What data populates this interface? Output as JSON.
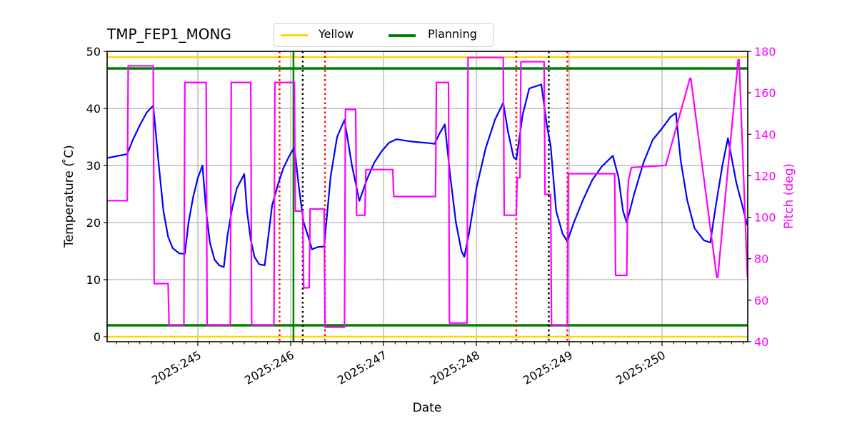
{
  "chart_data": {
    "type": "line",
    "title": "TMP_FEP1_MONG",
    "xlabel": "Date",
    "ylabel": "Temperature ($^\\circ$C)",
    "ylabel_display": "Temperature ( ̊C)",
    "y2label": "Pitch (deg)",
    "xlim": [
      244.02,
      250.92
    ],
    "ylim": [
      -1,
      50
    ],
    "y2lim": [
      40,
      180
    ],
    "grid": true,
    "legend_position": "top-center (above axes)",
    "x_ticks": [
      {
        "value": 245,
        "label": "2025:245"
      },
      {
        "value": 246,
        "label": "2025:246"
      },
      {
        "value": 247,
        "label": "2025:247"
      },
      {
        "value": 248,
        "label": "2025:248"
      },
      {
        "value": 249,
        "label": "2025:249"
      },
      {
        "value": 250,
        "label": "2025:250"
      }
    ],
    "y_ticks": [
      0,
      10,
      20,
      30,
      40,
      50
    ],
    "y2_ticks": [
      40,
      60,
      80,
      100,
      120,
      140,
      160,
      180
    ],
    "legend": [
      {
        "label": "Yellow",
        "color": "#ffd700"
      },
      {
        "label": "Planning",
        "color": "#008000"
      }
    ],
    "limits": [
      {
        "name": "Yellow high",
        "value": 49,
        "color": "#ffd700"
      },
      {
        "name": "Yellow low",
        "value": 0,
        "color": "#ffd700"
      },
      {
        "name": "Planning high",
        "value": 47,
        "color": "#008000"
      },
      {
        "name": "Planning low",
        "value": 2,
        "color": "#008000"
      }
    ],
    "vertical_lines": [
      {
        "x": 245.88,
        "color": "#ff0000",
        "style": "dotted"
      },
      {
        "x": 246.03,
        "color": "#008000",
        "style": "solid"
      },
      {
        "x": 246.13,
        "color": "#000000",
        "style": "dotted"
      },
      {
        "x": 246.37,
        "color": "#ff0000",
        "style": "dotted"
      },
      {
        "x": 248.43,
        "color": "#ff0000",
        "style": "dotted"
      },
      {
        "x": 248.78,
        "color": "#000000",
        "style": "dotted"
      },
      {
        "x": 248.98,
        "color": "#ff0000",
        "style": "dotted"
      }
    ],
    "series": [
      {
        "name": "TMP_FEP1_MONG",
        "axis": "left",
        "color": "#0000ff",
        "x": [
          244.02,
          244.24,
          244.3,
          244.38,
          244.45,
          244.52,
          244.58,
          244.63,
          244.68,
          244.73,
          244.8,
          244.86,
          244.9,
          244.95,
          245.0,
          245.05,
          245.09,
          245.13,
          245.18,
          245.23,
          245.28,
          245.32,
          245.37,
          245.42,
          245.5,
          245.53,
          245.57,
          245.61,
          245.66,
          245.72,
          245.77,
          245.8,
          245.86,
          245.92,
          245.98,
          246.04,
          246.09,
          246.14,
          246.2,
          246.23,
          246.29,
          246.36,
          246.43,
          246.5,
          246.58,
          246.66,
          246.74,
          246.82,
          246.9,
          246.98,
          247.06,
          247.14,
          247.3,
          247.5,
          247.55,
          247.6,
          247.66,
          247.72,
          247.78,
          247.84,
          247.87,
          247.92,
          248.0,
          248.1,
          248.2,
          248.29,
          248.34,
          248.4,
          248.43,
          248.5,
          248.57,
          248.7,
          248.76,
          248.8,
          248.86,
          248.93,
          248.98,
          249.05,
          249.15,
          249.25,
          249.35,
          249.47,
          249.53,
          249.58,
          249.62,
          249.7,
          249.8,
          249.9,
          250.0,
          250.09,
          250.15,
          250.2,
          250.27,
          250.35,
          250.45,
          250.52,
          250.57,
          250.65,
          250.71,
          250.8,
          250.92
        ],
        "values": [
          31.3,
          32.0,
          34.5,
          37.2,
          39.3,
          40.5,
          30.0,
          22.0,
          17.5,
          15.5,
          14.6,
          14.5,
          20.0,
          24.5,
          27.8,
          30.0,
          22.0,
          16.5,
          13.5,
          12.5,
          12.2,
          17.8,
          22.5,
          26.0,
          28.5,
          22.0,
          17.0,
          14.0,
          12.7,
          12.5,
          19.0,
          23.0,
          26.5,
          29.5,
          31.5,
          33.2,
          26.0,
          20.0,
          17.0,
          15.3,
          15.7,
          15.8,
          28.0,
          35.0,
          38.0,
          30.0,
          23.8,
          27.5,
          30.5,
          32.5,
          34.0,
          34.6,
          34.2,
          33.9,
          33.8,
          35.5,
          37.2,
          28.0,
          20.0,
          15.0,
          14.0,
          18.0,
          26.0,
          33.0,
          38.0,
          41.0,
          36.0,
          31.5,
          31.0,
          39.0,
          43.5,
          44.2,
          37.0,
          33.5,
          22.0,
          18.0,
          16.7,
          20.0,
          24.0,
          27.5,
          29.8,
          31.7,
          28.0,
          22.0,
          20.0,
          25.0,
          30.5,
          34.5,
          36.5,
          38.5,
          39.2,
          31.0,
          24.0,
          19.0,
          16.9,
          16.5,
          22.0,
          30.0,
          34.8,
          27.0,
          19.5
        ]
      },
      {
        "name": "Pitch",
        "axis": "right",
        "color": "#ff00ff",
        "x": [
          244.02,
          244.24,
          244.25,
          244.52,
          244.53,
          244.68,
          244.69,
          244.85,
          244.86,
          245.09,
          245.1,
          245.35,
          245.36,
          245.57,
          245.58,
          245.82,
          245.83,
          246.04,
          246.05,
          246.13,
          246.14,
          246.2,
          246.21,
          246.36,
          246.37,
          246.58,
          246.59,
          246.7,
          246.71,
          246.8,
          246.81,
          247.1,
          247.11,
          247.56,
          247.57,
          247.7,
          247.71,
          247.9,
          247.91,
          248.29,
          248.3,
          248.43,
          248.44,
          248.47,
          248.48,
          248.73,
          248.74,
          248.8,
          248.81,
          248.98,
          248.99,
          249.49,
          249.5,
          249.62,
          249.63,
          249.64,
          249.67,
          249.68,
          250.03,
          250.04,
          250.3,
          250.31,
          250.59,
          250.6,
          250.82,
          250.83,
          250.92
        ],
        "values": [
          108,
          108,
          173,
          173,
          68,
          68,
          48,
          48,
          165,
          165,
          48,
          48,
          165,
          165,
          48,
          48,
          165,
          165,
          103,
          103,
          66,
          66,
          104,
          104,
          47,
          47,
          152,
          152,
          101,
          101,
          123,
          123,
          110,
          110,
          165,
          165,
          49,
          49,
          177,
          177,
          101,
          101,
          119,
          119,
          175,
          175,
          111,
          111,
          48,
          48,
          121,
          121,
          72,
          72,
          112,
          118,
          124,
          124,
          125,
          125,
          167,
          167,
          71,
          71,
          176,
          176,
          71
        ]
      }
    ]
  }
}
